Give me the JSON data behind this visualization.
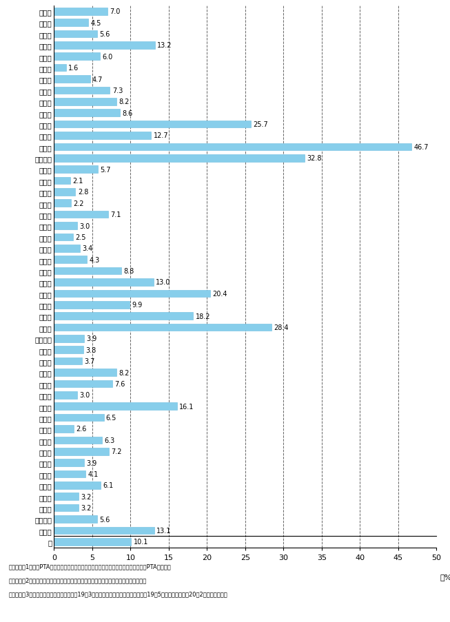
{
  "categories": [
    "北海道",
    "青森県",
    "岩手県",
    "宮城県",
    "秋田県",
    "山形県",
    "福島県",
    "茨城県",
    "栃木県",
    "群馬県",
    "埼玉県",
    "千葉県",
    "東京都",
    "神奈川県",
    "新潟県",
    "富山県",
    "石川県",
    "福井県",
    "山梨県",
    "長野県",
    "岐阜県",
    "静岡県",
    "愛知県",
    "三重県",
    "滋賀県",
    "京都府",
    "大阪府",
    "兵庫県",
    "奈良県",
    "和歌山県",
    "鳥取県",
    "島根県",
    "岡山県",
    "広島県",
    "山口県",
    "徳島県",
    "香川県",
    "愛媛県",
    "高知県",
    "福岡県",
    "佐賀県",
    "長崎県",
    "熊本県",
    "大分県",
    "宮崎県",
    "鹿児島県",
    "沖縄県",
    "計"
  ],
  "values": [
    7.0,
    4.5,
    5.6,
    13.2,
    6.0,
    1.6,
    4.7,
    7.3,
    8.2,
    8.6,
    25.7,
    12.7,
    46.7,
    32.8,
    5.7,
    2.1,
    2.8,
    2.2,
    7.1,
    3.0,
    2.5,
    3.4,
    4.3,
    8.8,
    13.0,
    20.4,
    9.9,
    18.2,
    28.4,
    3.9,
    3.8,
    3.7,
    8.2,
    7.6,
    3.0,
    16.1,
    6.5,
    2.6,
    6.3,
    7.2,
    3.9,
    4.1,
    6.1,
    3.2,
    3.2,
    5.6,
    13.1,
    10.1
  ],
  "bar_color": "#87CEEB",
  "bar_edge_color": "#6ABBE0",
  "background_color": "#ffffff",
  "xlim": [
    0,
    50
  ],
  "xticks": [
    0,
    5,
    10,
    15,
    20,
    25,
    30,
    35,
    40,
    45,
    50
  ],
  "xlabel_text": "（%）",
  "footnote_lines": [
    "（備考）　1．日本PTA全国協議会調べ（対象は北海道及び神奈川県以外の協議会加盟PTAのみ）。",
    "　　　　　2．北海道，神奈川県（政令市以外）についてはそれぞれ地方公共団体調べ。",
    "　　　　　3．北海道（政令市以外）は平成19年3月現在，神奈川県（政令市以外）は19年5月現在，その他は20年2月現在の数値。"
  ],
  "dashed_line_positions": [
    5,
    10,
    15,
    20,
    25,
    30,
    35,
    40,
    45
  ],
  "separator_before_last": true
}
